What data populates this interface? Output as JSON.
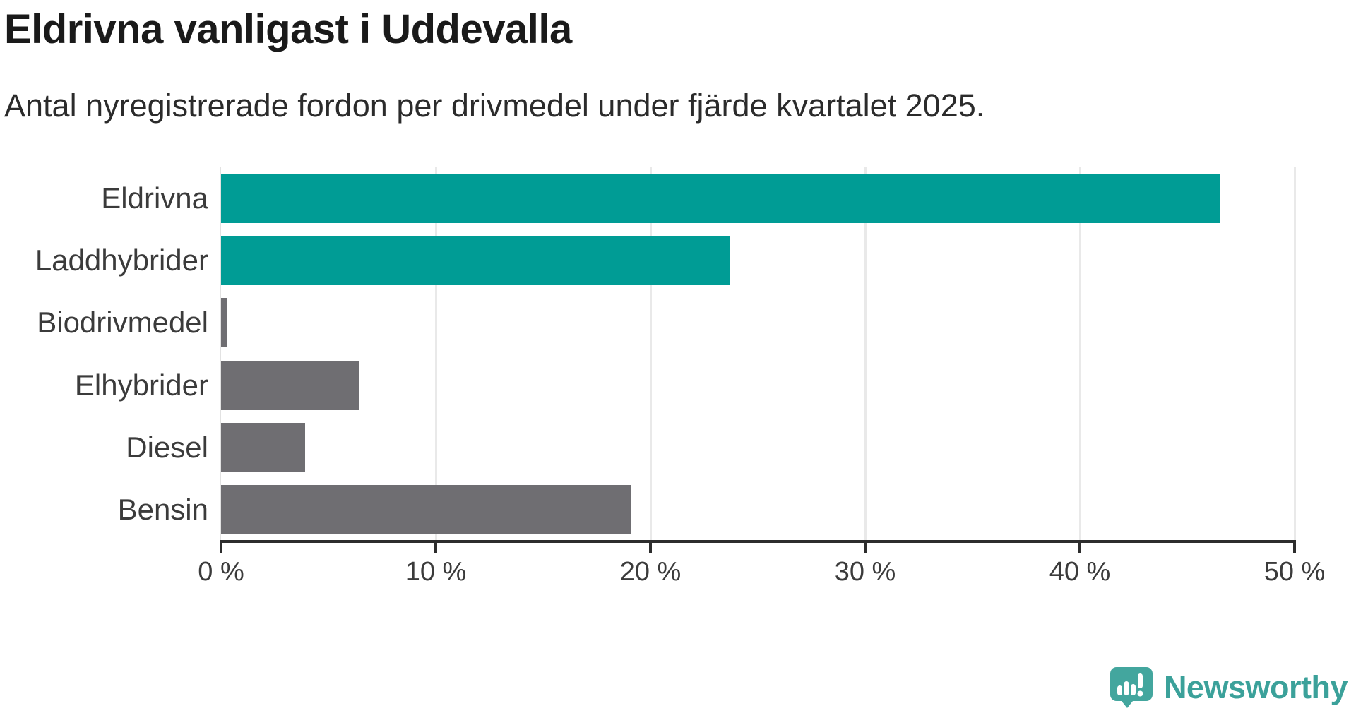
{
  "header": {
    "title": "Eldrivna vanligast i Uddevalla",
    "subtitle": "Antal nyregistrerade fordon per drivmedel under fjärde kvartalet 2025."
  },
  "chart_data": {
    "type": "bar",
    "orientation": "horizontal",
    "title": "Eldrivna vanligast i Uddevalla",
    "subtitle": "Antal nyregistrerade fordon per drivmedel under fjärde kvartalet 2025.",
    "categories": [
      "Eldrivna",
      "Laddhybrider",
      "Biodrivmedel",
      "Elhybrider",
      "Diesel",
      "Bensin"
    ],
    "values": [
      46.5,
      23.7,
      0.3,
      6.4,
      3.9,
      19.1
    ],
    "unit": "%",
    "bar_colors": [
      "#009C95",
      "#009C95",
      "#6F6E72",
      "#6F6E72",
      "#6F6E72",
      "#6F6E72"
    ],
    "xlabel": "",
    "ylabel": "",
    "xlim": [
      0,
      50
    ],
    "x_ticks": [
      0,
      10,
      20,
      30,
      40,
      50
    ],
    "x_tick_labels": [
      "0 %",
      "10 %",
      "20 %",
      "30 %",
      "40 %",
      "50 %"
    ],
    "grid": "vertical-gridlines-on",
    "legend": "none"
  },
  "branding": {
    "logo_text": "Newsworthy",
    "logo_icon": "speech-bubble-with-bar-chart-and-exclamation",
    "logo_color": "#3ba19a"
  },
  "colors": {
    "accent_teal": "#009C95",
    "neutral_gray": "#6F6E72",
    "axis_dark": "#2d2d2d",
    "gridline": "#e9e9e9",
    "text_dark": "#1a1a1a"
  }
}
